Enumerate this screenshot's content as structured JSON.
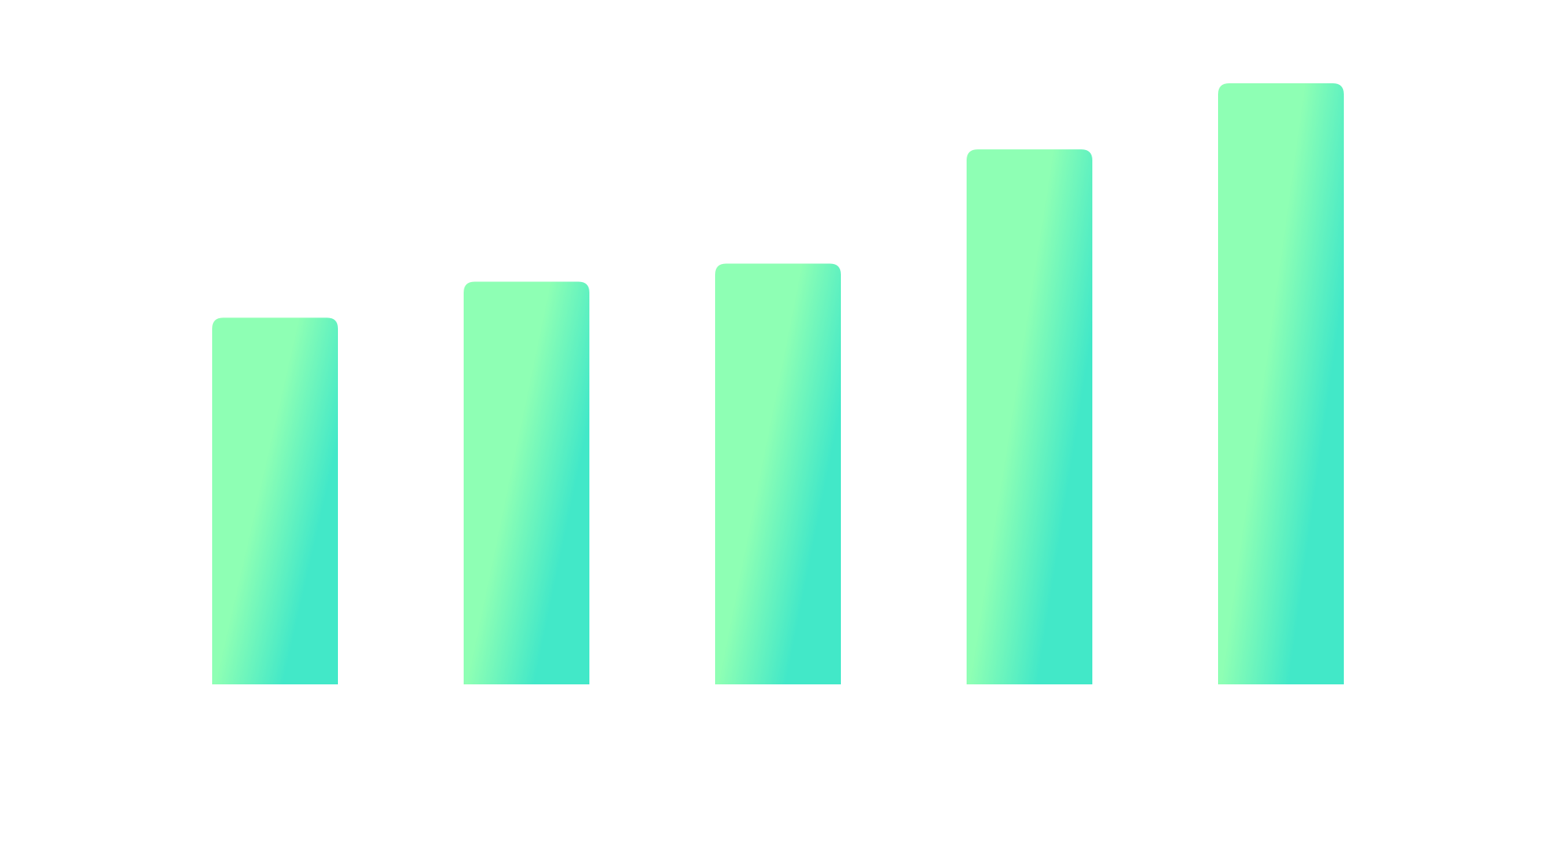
{
  "chart_data": {
    "type": "bar",
    "categories": [
      null,
      null,
      null,
      null,
      null
    ],
    "values": [
      61,
      67,
      70,
      89,
      100
    ],
    "colors": [
      "#8effb4",
      "#42e8c8"
    ],
    "ylim": [
      0,
      100
    ]
  }
}
